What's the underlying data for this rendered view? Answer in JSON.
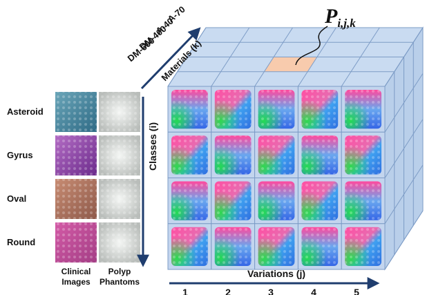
{
  "materials_axis": {
    "label": "Materials (k)",
    "items": [
      "A-70",
      "A-40",
      "DM-400",
      "DM-600"
    ]
  },
  "point_label": {
    "symbol": "P",
    "subscript": "i,j,k"
  },
  "classes_axis": {
    "label": "Classes (i)",
    "items": [
      "Asteroid",
      "Gyrus",
      "Oval",
      "Round"
    ]
  },
  "image_columns": [
    [
      "Clinical",
      "Images"
    ],
    [
      "Polyp",
      "Phantoms"
    ]
  ],
  "variations_axis": {
    "label": "Variations (j)",
    "numbers": [
      "1",
      "2",
      "3",
      "4",
      "5"
    ]
  }
}
